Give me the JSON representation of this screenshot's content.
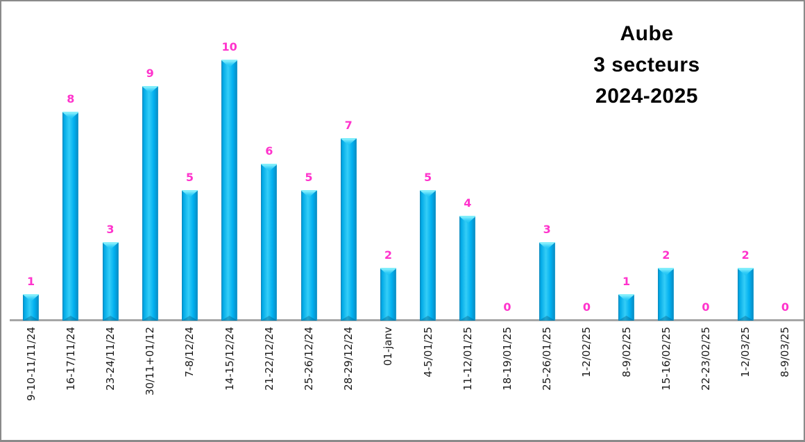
{
  "chart_data": {
    "type": "bar",
    "title_lines": [
      "Aube",
      "3 secteurs",
      "2024-2025"
    ],
    "categories": [
      "9-10-11/11/24",
      "16-17/11/24",
      "23-24/11/24",
      "30/11+01/12",
      "7-8/12/24",
      "14-15/12/24",
      "21-22/12/24",
      "25-26/12/24",
      "28-29/12/24",
      "01-janv",
      "4-5/01/25",
      "11-12/01/25",
      "18-19/01/25",
      "25-26/01/25",
      "1-2/02/25",
      "8-9/02/25",
      "15-16/02/25",
      "22-23/02/25",
      "1-2/03/25",
      "8-9/03/25"
    ],
    "values": [
      1,
      8,
      3,
      9,
      5,
      10,
      6,
      5,
      7,
      2,
      5,
      4,
      0,
      3,
      0,
      1,
      2,
      0,
      2,
      0
    ],
    "ylim": [
      0,
      10
    ],
    "grid": false,
    "legend": false,
    "value_labels_shown": true,
    "xlabel": "",
    "ylabel": "",
    "colors": {
      "bar": "#00b0f0",
      "bar_highlight": "#35cdf7",
      "value_label": "#ff33cc",
      "axis_line": "#a6a6a6",
      "tick_label": "#1a1a1a",
      "title": "#000000",
      "frame_border": "#8a8a8a",
      "background": "#ffffff"
    }
  }
}
